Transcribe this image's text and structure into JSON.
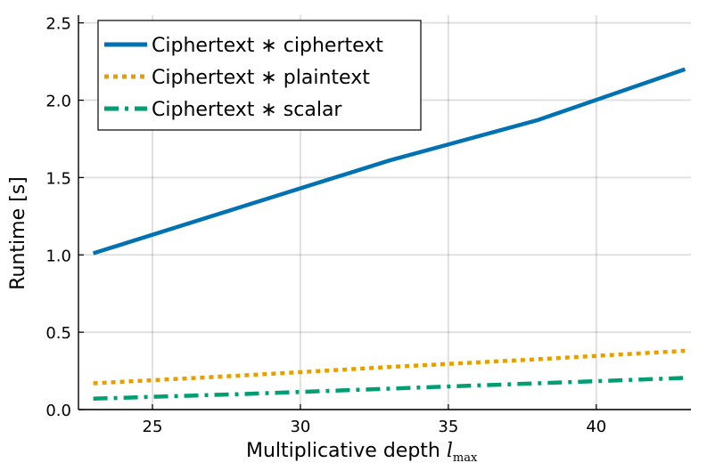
{
  "chart_data": {
    "type": "line",
    "xlabel": "Multiplicative depth l",
    "xlabel_subscript": "max",
    "ylabel": "Runtime [s]",
    "xlim": [
      22.5,
      43.2
    ],
    "ylim": [
      0,
      2.55
    ],
    "xticks": [
      25,
      30,
      35,
      40
    ],
    "yticks": [
      0.0,
      0.5,
      1.0,
      1.5,
      2.0,
      2.5
    ],
    "ytick_labels": [
      "0.0",
      "0.5",
      "1.0",
      "1.5",
      "2.0",
      "2.5"
    ],
    "grid": true,
    "legend_position": "top-left",
    "series": [
      {
        "name": "Ciphertext ∗ ciphertext",
        "color": "#0072b2",
        "dash": "solid",
        "x": [
          23,
          28,
          33,
          38,
          43
        ],
        "y": [
          1.01,
          1.31,
          1.61,
          1.87,
          2.2
        ]
      },
      {
        "name": "Ciphertext ∗ plaintext",
        "color": "#e69f00",
        "dash": "dot",
        "x": [
          23,
          28,
          33,
          38,
          43
        ],
        "y": [
          0.17,
          0.22,
          0.275,
          0.325,
          0.38
        ]
      },
      {
        "name": "Ciphertext ∗ scalar",
        "color": "#009e73",
        "dash": "dashdot",
        "x": [
          23,
          28,
          33,
          38,
          43
        ],
        "y": [
          0.07,
          0.1,
          0.135,
          0.17,
          0.205
        ]
      }
    ]
  }
}
